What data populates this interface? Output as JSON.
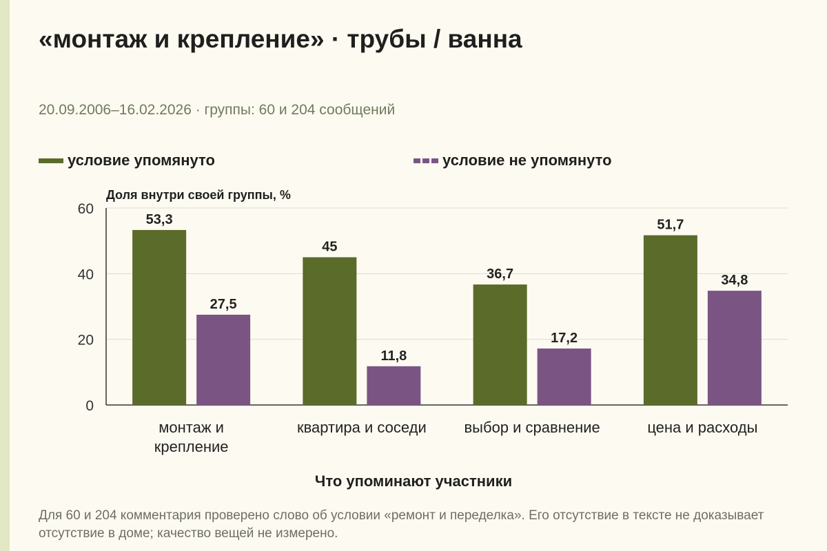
{
  "title": "«монтаж и крепление» · трубы / ванна",
  "subtitle": "20.09.2006–16.02.2026 · группы: 60 и 204 сообщений",
  "note": "Для 60 и 204 комментария проверено слово об условии «ремонт и переделка». Его отсутствие в тексте не доказывает отсутствие в доме; качество вещей не измерено.",
  "colors": {
    "mentioned": "#5a6b2a",
    "not_mentioned": "#7a5584",
    "gridline": "#dedbd0",
    "axis": "#333333",
    "background": "#fdfbf1"
  },
  "chart_data": {
    "type": "bar",
    "ylabel": "Доля внутри своей группы, %",
    "xlabel": "Что упоминают участники",
    "ylim": [
      0,
      60
    ],
    "yticks": [
      0,
      20,
      40,
      60
    ],
    "grid": true,
    "legend_position": "top",
    "categories": [
      [
        "монтаж и",
        "крепление"
      ],
      [
        "квартира и соседи"
      ],
      [
        "выбор и сравнение"
      ],
      [
        "цена и расходы"
      ]
    ],
    "series": [
      {
        "name": "условие упомянуто",
        "color": "#5a6b2a",
        "values": [
          53.3,
          45,
          36.7,
          51.7
        ],
        "labels": [
          "53,3",
          "45",
          "36,7",
          "51,7"
        ]
      },
      {
        "name": "условие не упомянуто",
        "color": "#7a5584",
        "values": [
          27.5,
          11.8,
          17.2,
          34.8
        ],
        "labels": [
          "27,5",
          "11,8",
          "17,2",
          "34,8"
        ]
      }
    ]
  }
}
